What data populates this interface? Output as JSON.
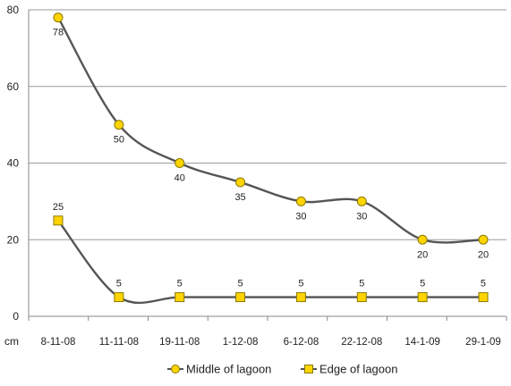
{
  "chart_data": {
    "type": "line",
    "categories": [
      "8-11-08",
      "11-11-08",
      "19-11-08",
      "1-12-08",
      "6-12-08",
      "22-12-08",
      "14-1-09",
      "29-1-09"
    ],
    "series": [
      {
        "name": "Middle of lagoon",
        "values": [
          78,
          50,
          40,
          35,
          30,
          30,
          20,
          20
        ],
        "marker": "circle",
        "data_labels": [
          "78",
          "50",
          "40",
          "35",
          "30",
          "30",
          "20",
          "20"
        ]
      },
      {
        "name": "Edge of lagoon",
        "values": [
          25,
          5,
          5,
          5,
          5,
          5,
          5,
          5
        ],
        "marker": "square",
        "data_labels": [
          "25",
          "5",
          "5",
          "5",
          "5",
          "5",
          "5",
          "5"
        ]
      }
    ],
    "xlabel": "cm",
    "ylabel": "",
    "ylim": [
      0,
      80
    ],
    "yticks": [
      "0",
      "20",
      "40",
      "60",
      "80"
    ],
    "grid": true,
    "legend": "bottom",
    "colors": {
      "line": "#555555",
      "marker_fill": "#ffd400",
      "marker_stroke": "#8a7a00",
      "grid": "#9a9a9a",
      "axis": "#888888"
    }
  }
}
